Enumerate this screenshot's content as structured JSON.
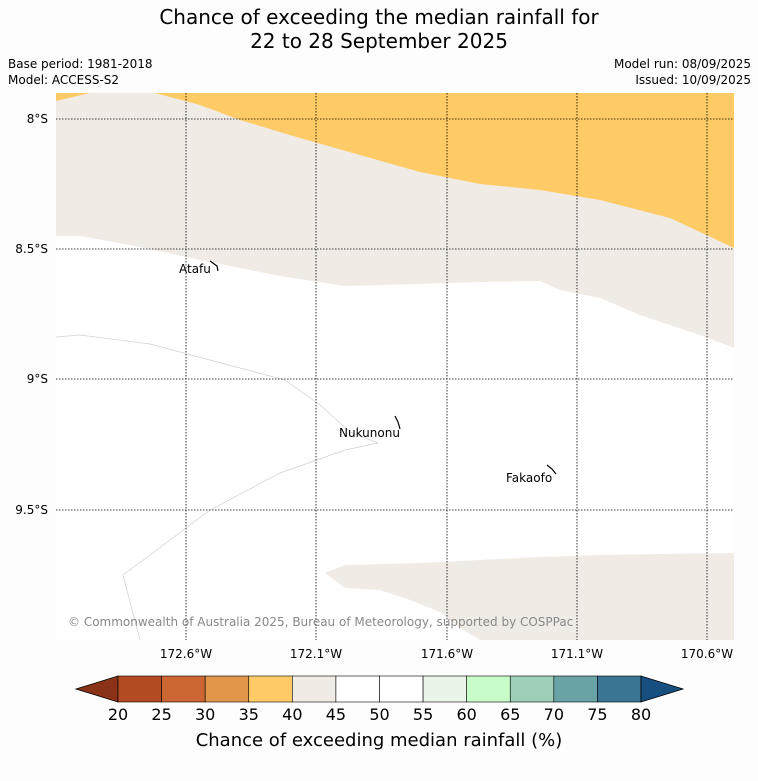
{
  "title": {
    "line1": "Chance of exceeding the median rainfall for",
    "line2": "22 to 28 September 2025"
  },
  "meta": {
    "base_period": "Base period: 1981-2018",
    "model": "Model: ACCESS-S2",
    "model_run": "Model run: 08/09/2025",
    "issued": "Issued: 10/09/2025"
  },
  "map": {
    "lat_labels": [
      "8°S",
      "8.5°S",
      "9°S",
      "9.5°S"
    ],
    "lon_labels": [
      "172.6°W",
      "172.1°W",
      "171.6°W",
      "171.1°W",
      "170.6°W"
    ],
    "places": [
      {
        "name": "Atafu"
      },
      {
        "name": "Nukunonu"
      },
      {
        "name": "Fakaofo"
      }
    ],
    "copyright": "© Commonwealth of Australia 2025, Bureau of Meteorology, supported by COSPPac",
    "colors": {
      "band_35_40": "#fecb66",
      "band_40_45": "#f0ebe5",
      "band_45_55": "#ffffff"
    }
  },
  "colorbar": {
    "title": "Chance of exceeding median rainfall (%)",
    "ticks": [
      "20",
      "25",
      "30",
      "35",
      "40",
      "45",
      "50",
      "55",
      "60",
      "65",
      "70",
      "75",
      "80"
    ],
    "colors": [
      "#b24a22",
      "#cc6632",
      "#e2964a",
      "#fecb66",
      "#f0ebe5",
      "#ffffff",
      "#ffffff",
      "#e8f5e8",
      "#c8fcc8",
      "#9dcfb9",
      "#6aa3a6",
      "#3c7494"
    ],
    "under_color": "#8b3318",
    "over_color": "#174f80"
  }
}
